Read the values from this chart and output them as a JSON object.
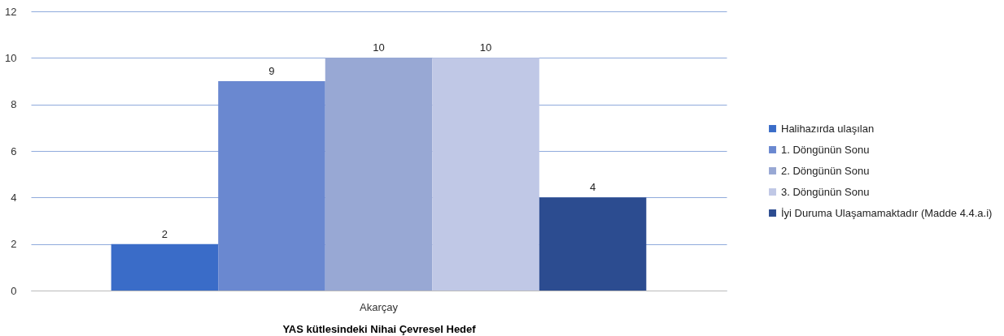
{
  "chart_data": {
    "type": "bar",
    "xlabel": "YAS kütlesindeki Nihai Çevresel Hedef",
    "categories": [
      "Akarçay"
    ],
    "series": [
      {
        "name": "Halihazırda ulaşılan",
        "color": "#3a6cc8",
        "values": [
          2
        ]
      },
      {
        "name": "1. Döngünün Sonu",
        "color": "#6a88d0",
        "values": [
          9
        ]
      },
      {
        "name": "2. Döngünün Sonu",
        "color": "#98a8d4",
        "values": [
          10
        ]
      },
      {
        "name": "3. Döngünün Sonu",
        "color": "#c0c8e6",
        "values": [
          10
        ]
      },
      {
        "name": "İyi Duruma Ulaşamamaktadır (Madde 4.4.a.i)",
        "color": "#2c4c90",
        "values": [
          4
        ]
      }
    ],
    "ylim": [
      0,
      12
    ],
    "yticks": [
      0,
      2,
      4,
      6,
      8,
      10,
      12
    ],
    "grid": "y",
    "legend": "right",
    "data_labels": true
  }
}
